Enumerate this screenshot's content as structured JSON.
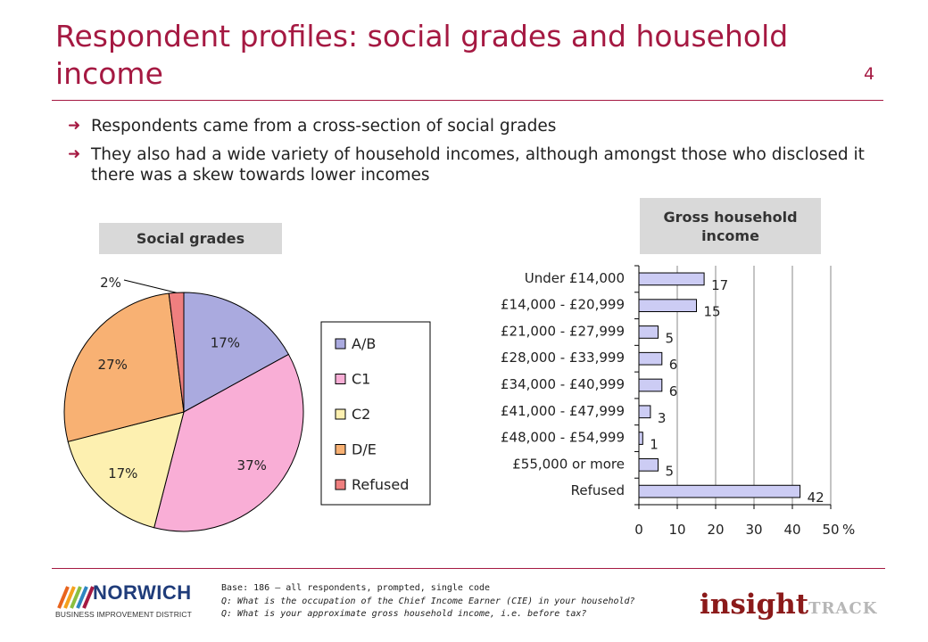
{
  "slide": {
    "title": "Respondent profiles: social grades and household income",
    "page_number": "4",
    "bullets": [
      "Respondents came from a cross-section of social grades",
      "They also had a wide variety of household incomes, although amongst those who disclosed it there was a skew towards lower incomes"
    ],
    "bullet_icon": "right-arrow-icon"
  },
  "labels": {
    "social": "Social grades",
    "income": "Gross household income"
  },
  "colors": {
    "brand": "#a51942",
    "pie_AB": "#aaaadf",
    "pie_C1": "#f9aed6",
    "pie_C2": "#fdf0b0",
    "pie_DE": "#f8b173",
    "pie_Refused": "#ef7f7f",
    "bar_fill": "#ccccf4"
  },
  "chart_data": [
    {
      "type": "pie",
      "title": "Social grades",
      "categories": [
        "A/B",
        "C1",
        "C2",
        "D/E",
        "Refused"
      ],
      "values": [
        17,
        37,
        17,
        27,
        2
      ],
      "value_labels": [
        "17%",
        "37%",
        "17%",
        "27%",
        "2%"
      ],
      "legend_position": "right"
    },
    {
      "type": "bar",
      "orientation": "horizontal",
      "title": "Gross household income",
      "categories": [
        "Under £14,000",
        "£14,000 - £20,999",
        "£21,000 - £27,999",
        "£28,000 - £33,999",
        "£34,000 - £40,999",
        "£41,000 - £47,999",
        "£48,000 - £54,999",
        "£55,000 or more",
        "Refused"
      ],
      "values": [
        17,
        15,
        5,
        6,
        6,
        3,
        1,
        5,
        42
      ],
      "xlim": [
        0,
        50
      ],
      "x_ticks": [
        0,
        10,
        20,
        30,
        40,
        50
      ],
      "xlabel": "%",
      "grid": true
    }
  ],
  "footer": {
    "base": "Base: 186 – all respondents, prompted, single code",
    "q1": "Q: What is the occupation of the Chief Income Earner (CIE) in your household?",
    "q2": "Q: What is your approximate gross household income, i.e. before tax?"
  },
  "logos": {
    "norwich_word": "NORWICH",
    "norwich_sub": "BUSINESS IMPROVEMENT DISTRICT",
    "insight_a": "insight",
    "insight_b": "TRACK"
  }
}
